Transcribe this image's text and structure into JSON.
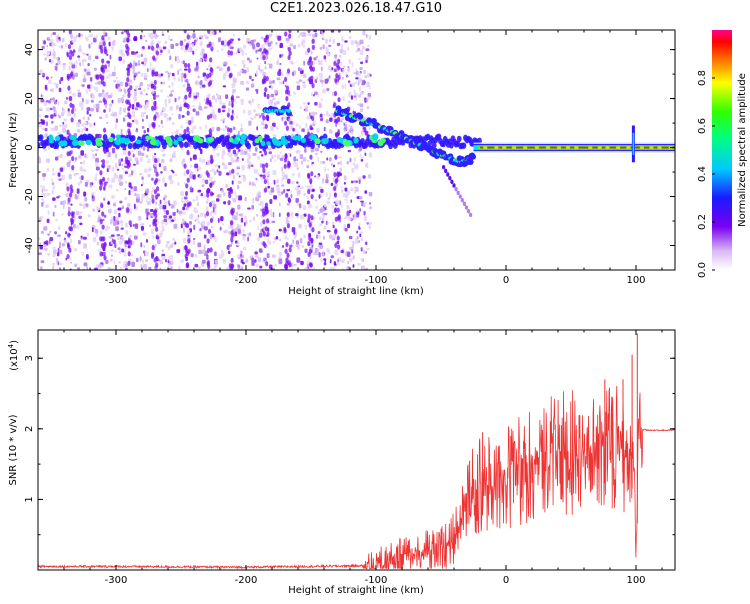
{
  "title": "C2E1.2023.026.18.47.G10",
  "chart_data": [
    {
      "type": "heatmap",
      "xlabel": "Height of straight line (km)",
      "ylabel": "Frequency (Hz)",
      "xlim": [
        -360,
        130
      ],
      "ylim": [
        -50,
        48
      ],
      "xticks": [
        -300,
        -200,
        -100,
        0,
        100
      ],
      "yticks": [
        -40,
        -20,
        0,
        20,
        40
      ],
      "grid": false,
      "colorbar": {
        "label": "Normalized spectral amplitude",
        "range": [
          0.0,
          1.0
        ],
        "ticks": [
          0.0,
          0.2,
          0.4,
          0.6,
          0.8
        ]
      },
      "features": {
        "noise_band_km": [
          -360,
          -115
        ],
        "main_line_freq_hz": 0,
        "main_line_km": [
          -20,
          130
        ],
        "secondary_branch": [
          [
            -130,
            15
          ],
          [
            -110,
            11
          ],
          [
            -90,
            7
          ],
          [
            -70,
            2
          ],
          [
            -50,
            -3
          ],
          [
            -35,
            -6
          ],
          [
            -25,
            -4
          ]
        ],
        "spike_at_km": 98
      }
    },
    {
      "type": "line",
      "xlabel": "Height of straight line (km)",
      "ylabel": "SNR (10 * v/v)",
      "multiplier_label": "(x10",
      "multiplier_exp": "4",
      "multiplier_close": ")",
      "xlim": [
        -360,
        130
      ],
      "ylim": [
        0,
        3.4
      ],
      "xticks": [
        -300,
        -200,
        -100,
        0,
        100
      ],
      "yticks": [
        1,
        2,
        3
      ],
      "grid": false,
      "series": [
        {
          "color": "#ee3333",
          "envelope": [
            [
              -360,
              0.05
            ],
            [
              -300,
              0.05
            ],
            [
              -200,
              0.04
            ],
            [
              -110,
              0.06
            ],
            [
              -100,
              0.15
            ],
            [
              -80,
              0.28
            ],
            [
              -60,
              0.38
            ],
            [
              -45,
              0.45
            ],
            [
              -35,
              0.75
            ],
            [
              -30,
              1.25
            ],
            [
              -20,
              1.45
            ],
            [
              -10,
              1.5
            ],
            [
              0,
              1.55
            ],
            [
              10,
              1.7
            ],
            [
              20,
              1.8
            ],
            [
              30,
              1.95
            ],
            [
              50,
              2.0
            ],
            [
              70,
              2.05
            ],
            [
              90,
              2.05
            ],
            [
              98,
              1.9
            ],
            [
              100,
              0.2
            ],
            [
              102,
              2.0
            ],
            [
              110,
              1.98
            ],
            [
              130,
              1.98
            ]
          ],
          "peaks": [
            [
              101,
              3.35
            ],
            [
              97,
              3.05
            ],
            [
              90,
              2.7
            ],
            [
              76,
              2.7
            ],
            [
              -18,
              1.95
            ],
            [
              -28,
              1.55
            ]
          ]
        }
      ]
    }
  ]
}
